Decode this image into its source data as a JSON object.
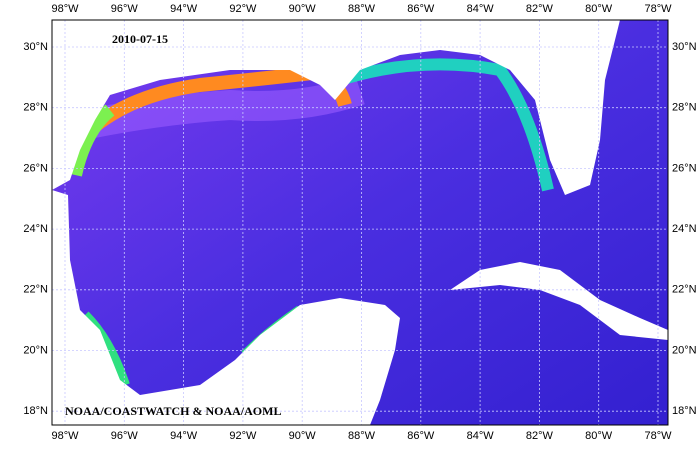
{
  "map": {
    "date": "2010-07-15",
    "credit": "NOAA/COASTWATCH & NOAA/AOML",
    "longitude_labels": [
      "98°W",
      "96°W",
      "94°W",
      "92°W",
      "90°W",
      "88°W",
      "86°W",
      "84°W",
      "82°W",
      "80°W",
      "78°W"
    ],
    "latitude_labels": [
      "30°N",
      "28°N",
      "26°N",
      "24°N",
      "22°N",
      "20°N",
      "18°N"
    ]
  }
}
